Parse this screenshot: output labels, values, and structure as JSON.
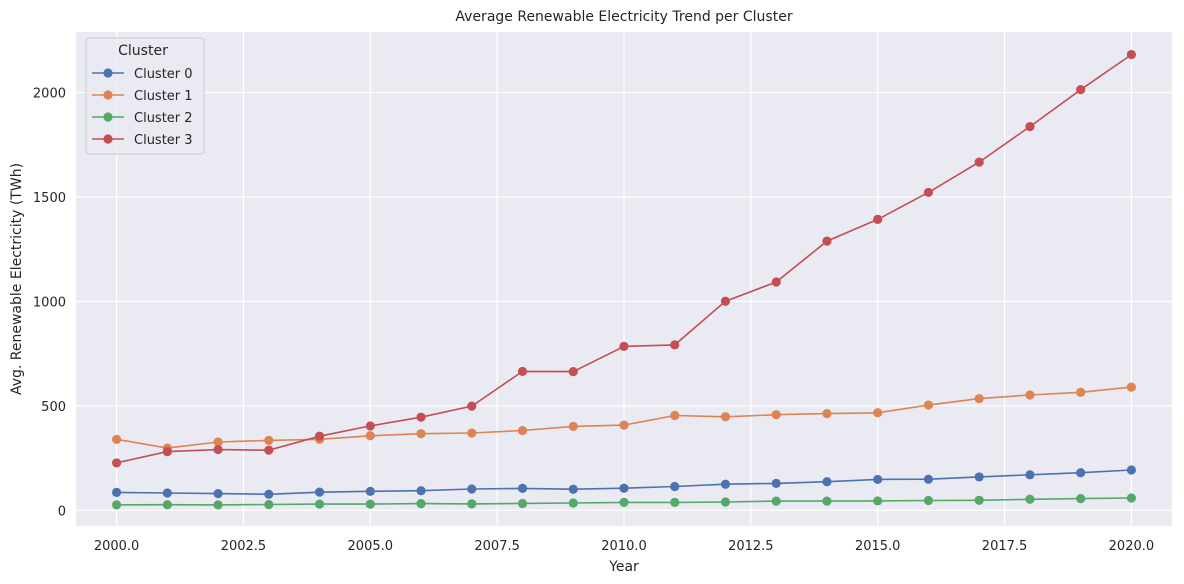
{
  "chart_data": {
    "type": "line",
    "title": "Average Renewable Electricity Trend per Cluster",
    "xlabel": "Year",
    "ylabel": "Avg. Renewable Electricity (TWh)",
    "xlim": [
      1999.2,
      2020.8
    ],
    "ylim": [
      -75,
      2290
    ],
    "x_ticks": [
      2000.0,
      2002.5,
      2005.0,
      2007.5,
      2010.0,
      2012.5,
      2015.0,
      2017.5,
      2020.0
    ],
    "x_tick_labels": [
      "2000.0",
      "2002.5",
      "2005.0",
      "2007.5",
      "2010.0",
      "2012.5",
      "2015.0",
      "2017.5",
      "2020.0"
    ],
    "y_ticks": [
      0,
      500,
      1000,
      1500,
      2000
    ],
    "y_tick_labels": [
      "0",
      "500",
      "1000",
      "1500",
      "2000"
    ],
    "grid": true,
    "legend": {
      "title": "Cluster",
      "placement": "top-left"
    },
    "x": [
      2000,
      2001,
      2002,
      2003,
      2004,
      2005,
      2006,
      2007,
      2008,
      2009,
      2010,
      2011,
      2012,
      2013,
      2014,
      2015,
      2016,
      2017,
      2018,
      2019,
      2020
    ],
    "series": [
      {
        "name": "Cluster 0",
        "color": "#4c72b0",
        "values": [
          86,
          83,
          80,
          77,
          87,
          91,
          94,
          102,
          105,
          101,
          106,
          114,
          125,
          129,
          137,
          148,
          149,
          160,
          170,
          180,
          193
        ]
      },
      {
        "name": "Cluster 1",
        "color": "#dd8452",
        "values": [
          340,
          298,
          327,
          335,
          340,
          357,
          367,
          370,
          382,
          402,
          408,
          454,
          448,
          458,
          463,
          467,
          504,
          535,
          552,
          565,
          590
        ]
      },
      {
        "name": "Cluster 2",
        "color": "#55a868",
        "values": [
          26,
          27,
          26,
          28,
          30,
          30,
          32,
          31,
          33,
          35,
          38,
          38,
          40,
          44,
          44,
          45,
          47,
          48,
          53,
          56,
          59
        ]
      },
      {
        "name": "Cluster 3",
        "color": "#c44e52",
        "values": [
          227,
          281,
          291,
          288,
          355,
          404,
          446,
          499,
          665,
          664,
          785,
          792,
          1001,
          1093,
          1289,
          1393,
          1522,
          1667,
          1837,
          2014,
          2182
        ]
      }
    ]
  }
}
